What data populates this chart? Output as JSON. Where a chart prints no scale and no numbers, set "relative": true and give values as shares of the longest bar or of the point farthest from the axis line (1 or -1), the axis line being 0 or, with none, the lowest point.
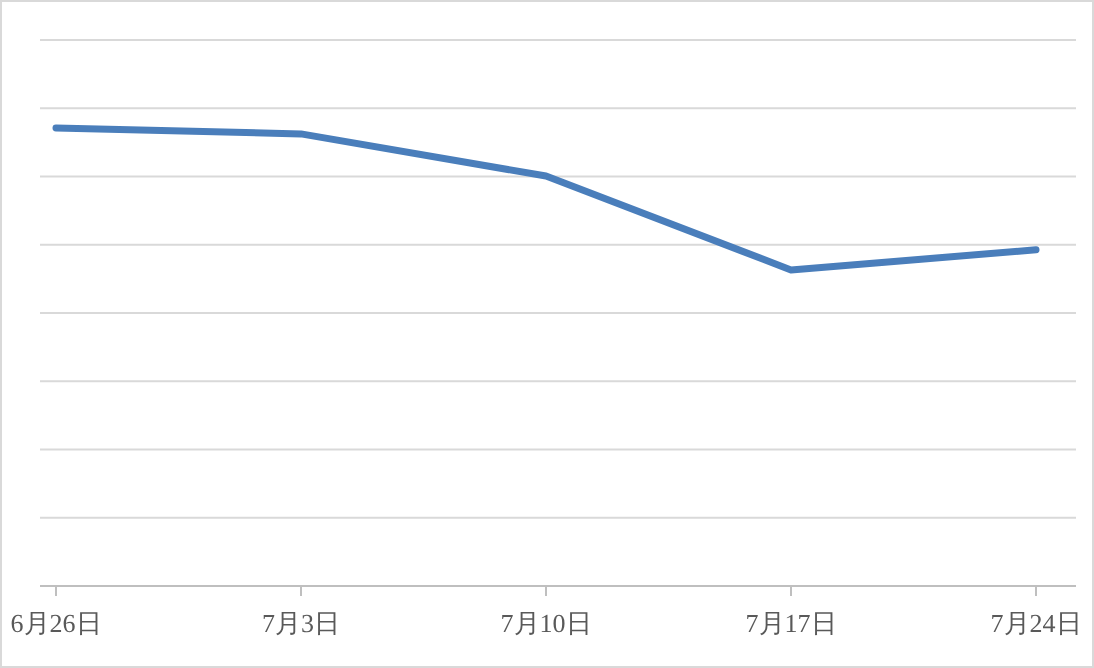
{
  "chart_data": {
    "type": "line",
    "relative": true,
    "categories": [
      "6月26日",
      "7月3日",
      "7月10日",
      "7月17日",
      "7月24日"
    ],
    "series": [
      {
        "color": "#4a7ebb",
        "values": [
          1,
          0.987,
          0.895,
          0.69,
          0.734
        ]
      }
    ],
    "grid": "y",
    "marker": "none",
    "line_style": "solid"
  }
}
